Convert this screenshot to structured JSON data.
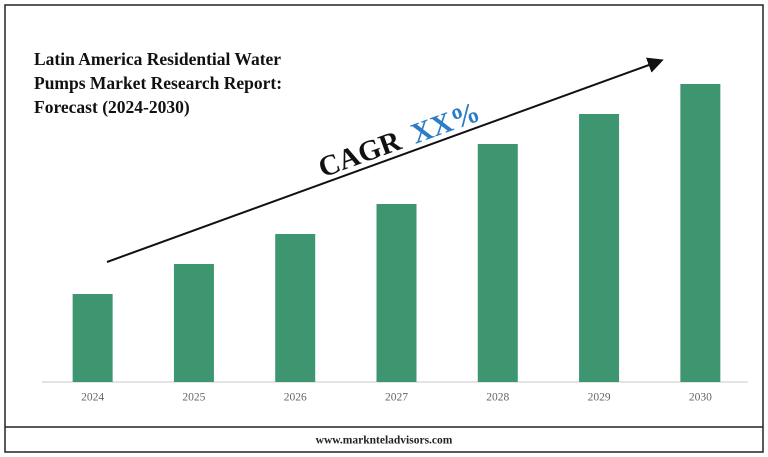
{
  "chart_data": {
    "type": "bar",
    "title": "Latin America Residential Water Pumps Market Research Report: Forecast (2024-2030)",
    "annotation": {
      "label": "CAGR",
      "value": "XX%"
    },
    "categories": [
      "2024",
      "2025",
      "2026",
      "2027",
      "2028",
      "2029",
      "2030"
    ],
    "values": [
      88,
      118,
      148,
      178,
      238,
      268,
      298
    ],
    "color": "#3d9670",
    "ylim": [
      0,
      300
    ],
    "footer": "www.marknteladvisors.com"
  }
}
